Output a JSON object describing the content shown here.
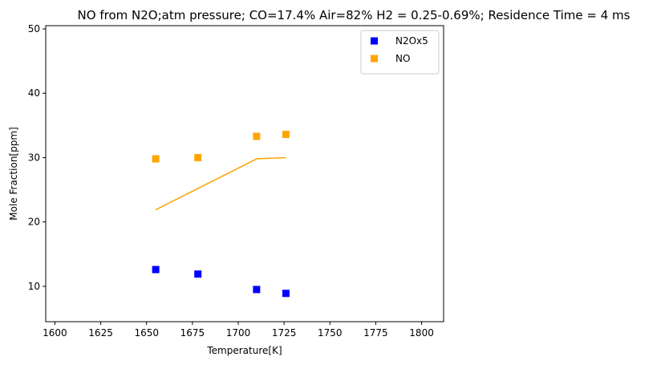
{
  "chart_data": {
    "type": "scatter",
    "title": "NO from N2O;atm pressure; CO=17.4%  Air=82% H2 = 0.25-0.69%; Residence Time = 4 ms",
    "xlabel": "Temperature[K]",
    "ylabel": "Mole Fraction[ppm]",
    "xlim": [
      1595,
      1812
    ],
    "ylim": [
      4.5,
      50.5
    ],
    "xticks": [
      1600,
      1625,
      1650,
      1675,
      1700,
      1725,
      1750,
      1775,
      1800
    ],
    "yticks": [
      10,
      20,
      30,
      40,
      50
    ],
    "grid": false,
    "legend_position": "top-right",
    "series": [
      {
        "name": "N2Ox5",
        "kind": "markers",
        "marker": "square",
        "color": "#0000ff",
        "x": [
          1655,
          1678,
          1710,
          1726
        ],
        "y": [
          12.6,
          11.9,
          9.5,
          8.9
        ]
      },
      {
        "name": "NO",
        "kind": "markers",
        "marker": "square",
        "color": "#ffa500",
        "x": [
          1655,
          1678,
          1710,
          1726
        ],
        "y": [
          29.8,
          30.0,
          33.3,
          33.6
        ]
      },
      {
        "kind": "line",
        "color": "#ffa500",
        "x": [
          1655,
          1710,
          1726
        ],
        "y": [
          21.9,
          29.8,
          30.0
        ]
      }
    ]
  }
}
